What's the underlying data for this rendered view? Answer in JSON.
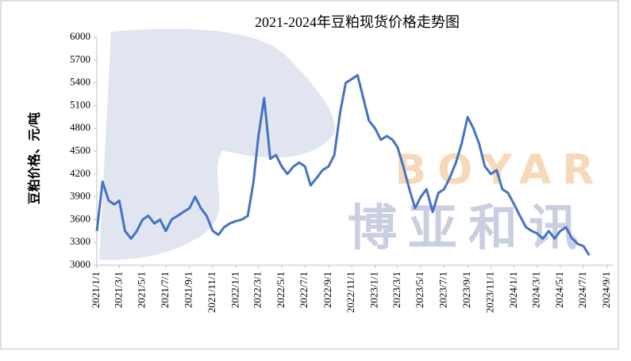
{
  "chart_data": {
    "type": "line",
    "title": "2021-2024年豆粕现货价格走势图",
    "y_label": "豆粕价格、元/吨",
    "watermark": [
      "BOYAR",
      "博亚和讯"
    ],
    "x": [
      "2021/1/1",
      "2021/1/16",
      "2021/2/1",
      "2021/2/16",
      "2021/3/1",
      "2021/3/16",
      "2021/4/1",
      "2021/4/16",
      "2021/5/1",
      "2021/5/16",
      "2021/6/1",
      "2021/6/16",
      "2021/7/1",
      "2021/7/16",
      "2021/8/1",
      "2021/8/16",
      "2021/9/1",
      "2021/9/16",
      "2021/10/1",
      "2021/10/16",
      "2021/11/1",
      "2021/11/16",
      "2021/12/1",
      "2021/12/16",
      "2022/1/1",
      "2022/1/16",
      "2022/2/1",
      "2022/2/16",
      "2022/3/1",
      "2022/3/16",
      "2022/4/1",
      "2022/4/16",
      "2022/5/1",
      "2022/5/16",
      "2022/6/1",
      "2022/6/16",
      "2022/7/1",
      "2022/7/16",
      "2022/8/1",
      "2022/8/16",
      "2022/9/1",
      "2022/9/16",
      "2022/10/1",
      "2022/10/16",
      "2022/11/1",
      "2022/11/16",
      "2022/12/1",
      "2022/12/16",
      "2023/1/1",
      "2023/1/16",
      "2023/2/1",
      "2023/2/16",
      "2023/3/1",
      "2023/3/16",
      "2023/4/1",
      "2023/4/16",
      "2023/5/1",
      "2023/5/16",
      "2023/6/1",
      "2023/6/16",
      "2023/7/1",
      "2023/7/16",
      "2023/8/1",
      "2023/8/16",
      "2023/9/1",
      "2023/9/16",
      "2023/10/1",
      "2023/10/16",
      "2023/11/1",
      "2023/11/16",
      "2023/12/1",
      "2023/12/16",
      "2024/1/1",
      "2024/1/16",
      "2024/2/1",
      "2024/2/16",
      "2024/3/1",
      "2024/3/16",
      "2024/4/1",
      "2024/4/16",
      "2024/5/1",
      "2024/5/16",
      "2024/6/1",
      "2024/6/16",
      "2024/7/1",
      "2024/7/16"
    ],
    "series": [
      {
        "name": "豆粕现货价格",
        "color": "#4472c4",
        "values": [
          3450,
          4100,
          3850,
          3800,
          3850,
          3450,
          3350,
          3450,
          3600,
          3650,
          3550,
          3600,
          3450,
          3600,
          3650,
          3700,
          3750,
          3900,
          3750,
          3650,
          3450,
          3400,
          3500,
          3550,
          3580,
          3600,
          3650,
          4100,
          4700,
          5200,
          4400,
          4450,
          4300,
          4200,
          4300,
          4350,
          4300,
          4050,
          4150,
          4250,
          4300,
          4450,
          5000,
          5400,
          5450,
          5500,
          5200,
          4900,
          4800,
          4650,
          4700,
          4650,
          4550,
          4300,
          4000,
          3750,
          3900,
          4000,
          3700,
          3950,
          4000,
          4150,
          4350,
          4600,
          4950,
          4800,
          4600,
          4300,
          4200,
          4250,
          4000,
          3950,
          3800,
          3650,
          3500,
          3450,
          3420,
          3350,
          3450,
          3350,
          3450,
          3500,
          3350,
          3280,
          3250,
          3130
        ]
      }
    ],
    "ylim": [
      3000,
      6000
    ],
    "yticks": [
      3000,
      3300,
      3600,
      3900,
      4200,
      4500,
      4800,
      5100,
      5400,
      5700,
      6000
    ],
    "xlim": [
      "2021/1/1",
      "2024/9/1"
    ],
    "xticks": [
      "2021/1/1",
      "2021/3/1",
      "2021/5/1",
      "2021/7/1",
      "2021/9/1",
      "2021/11/1",
      "2022/1/1",
      "2022/3/1",
      "2022/5/1",
      "2022/7/1",
      "2022/9/1",
      "2022/11/1",
      "2023/1/1",
      "2023/3/1",
      "2023/5/1",
      "2023/7/1",
      "2023/9/1",
      "2023/11/1",
      "2024/1/1",
      "2024/3/1",
      "2024/5/1",
      "2024/7/1",
      "2024/9/1"
    ]
  }
}
